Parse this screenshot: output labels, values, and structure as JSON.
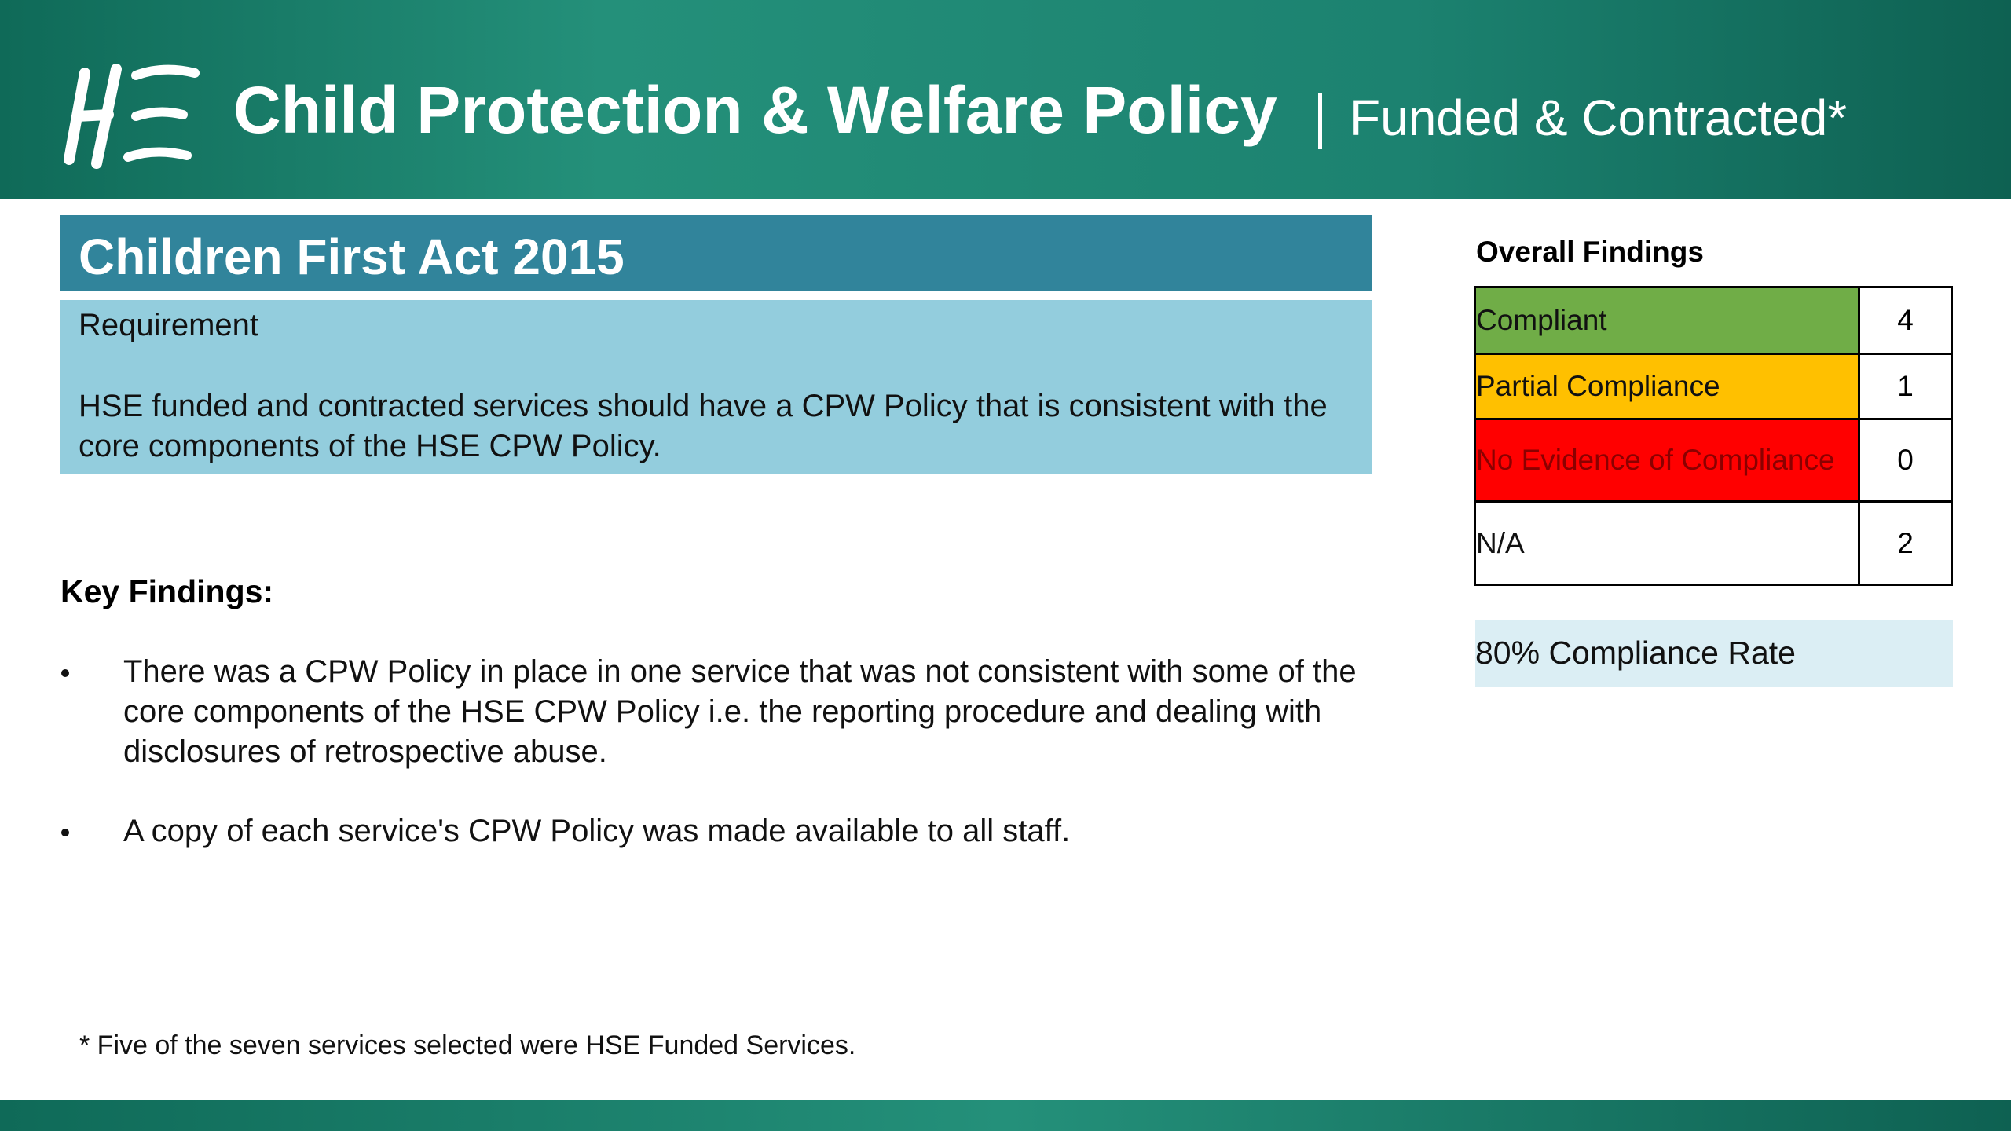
{
  "header": {
    "title": "Child Protection & Welfare Policy",
    "subtitle": "Funded & Contracted*"
  },
  "section": {
    "title": "Children First Act 2015",
    "requirement_label": "Requirement",
    "requirement_text": "HSE funded and contracted services should have a CPW Policy that is consistent with the core components of the HSE CPW Policy."
  },
  "key_findings": {
    "heading": "Key Findings:",
    "items": [
      "There was a CPW Policy in place in one service that was not consistent with some of the core components of the HSE CPW Policy i.e. the reporting procedure and dealing with disclosures of retrospective abuse.",
      "A copy of each service's CPW Policy was made available to all staff."
    ]
  },
  "findings": {
    "title": "Overall Findings",
    "rows": [
      {
        "label": "Compliant",
        "value": 4,
        "color": "#70ad47"
      },
      {
        "label": "Partial Compliance",
        "value": 1,
        "color": "#ffc000"
      },
      {
        "label": "No Evidence of Compliance",
        "value": 0,
        "color": "#ff0000"
      },
      {
        "label": "N/A",
        "value": 2,
        "color": "#ffffff"
      }
    ],
    "compliance_rate": "80% Compliance Rate"
  },
  "footnote": "* Five of the seven services selected were HSE Funded Services."
}
